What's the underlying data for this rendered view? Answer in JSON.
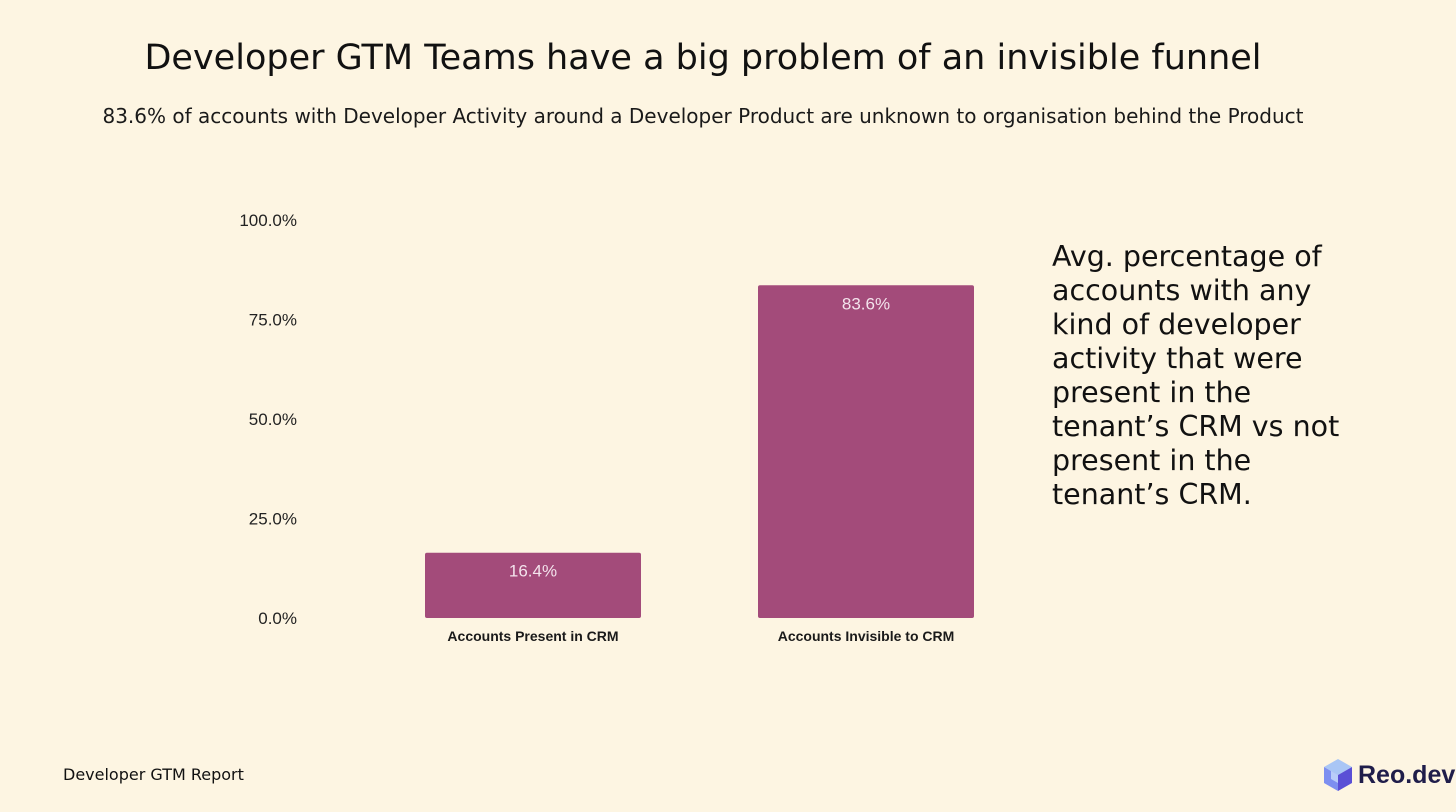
{
  "header": {
    "title": "Developer GTM Teams have a big problem of an invisible funnel",
    "subtitle": "83.6% of accounts with Developer Activity around a Developer Product are unknown to organisation behind the Product"
  },
  "annotation": {
    "text": "Avg. percentage of accounts with any kind of developer activity that were present in the tenant’s CRM vs not present in the tenant’s CRM."
  },
  "footer": {
    "report_label": "Developer GTM Report",
    "brand": "Reo.dev"
  },
  "colors": {
    "background": "#fdf5e2",
    "bar": "#a34b7a",
    "logo_light": "#8fb6f0",
    "logo_dark": "#5a4fd6"
  },
  "chart_data": {
    "type": "bar",
    "title": "Developer GTM Teams have a big problem of an invisible funnel",
    "xlabel": "",
    "ylabel": "",
    "categories": [
      "Accounts Present in CRM",
      "Accounts Invisible to CRM"
    ],
    "values": [
      16.4,
      83.6
    ],
    "value_labels": [
      "16.4%",
      "83.6%"
    ],
    "ylim": [
      0,
      100
    ],
    "yticks": [
      0,
      25,
      50,
      75,
      100
    ],
    "ytick_labels": [
      "0.0%",
      "25.0%",
      "50.0%",
      "75.0%",
      "100.0%"
    ],
    "grid": false,
    "legend": "none"
  }
}
